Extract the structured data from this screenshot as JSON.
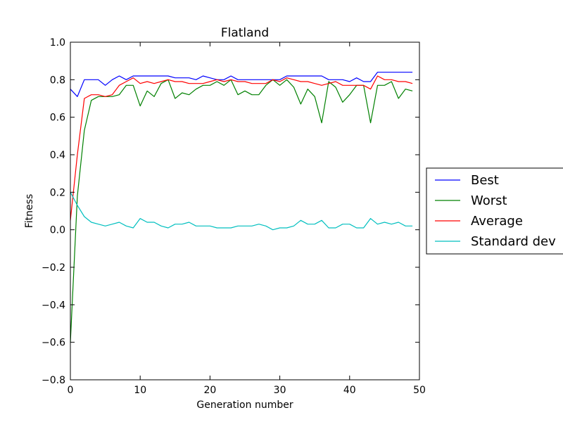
{
  "chart_data": {
    "type": "line",
    "title": "Flatland",
    "xlabel": "Generation number",
    "ylabel": "Fitness",
    "xlim": [
      0,
      50
    ],
    "ylim": [
      -0.8,
      1.0
    ],
    "xticks": [
      0,
      10,
      20,
      30,
      40,
      50
    ],
    "yticks": [
      -0.8,
      -0.6,
      -0.4,
      -0.2,
      0.0,
      0.2,
      0.4,
      0.6,
      0.8,
      1.0
    ],
    "grid": false,
    "legend_position": "right, outside plot area",
    "x": [
      0,
      1,
      2,
      3,
      4,
      5,
      6,
      7,
      8,
      9,
      10,
      11,
      12,
      13,
      14,
      15,
      16,
      17,
      18,
      19,
      20,
      21,
      22,
      23,
      24,
      25,
      26,
      27,
      28,
      29,
      30,
      31,
      32,
      33,
      34,
      35,
      36,
      37,
      38,
      39,
      40,
      41,
      42,
      43,
      44,
      45,
      46,
      47,
      48,
      49
    ],
    "series": [
      {
        "name": "Best",
        "color": "#0000ff",
        "values": [
          0.75,
          0.71,
          0.8,
          0.8,
          0.8,
          0.77,
          0.8,
          0.82,
          0.8,
          0.82,
          0.82,
          0.82,
          0.82,
          0.82,
          0.82,
          0.81,
          0.81,
          0.81,
          0.8,
          0.82,
          0.81,
          0.8,
          0.8,
          0.82,
          0.8,
          0.8,
          0.8,
          0.8,
          0.8,
          0.8,
          0.8,
          0.82,
          0.82,
          0.82,
          0.82,
          0.82,
          0.82,
          0.8,
          0.8,
          0.8,
          0.79,
          0.81,
          0.79,
          0.79,
          0.84,
          0.84,
          0.84,
          0.84,
          0.84,
          0.84
        ]
      },
      {
        "name": "Worst",
        "color": "#008000",
        "values": [
          -0.6,
          0.18,
          0.53,
          0.69,
          0.71,
          0.71,
          0.71,
          0.72,
          0.77,
          0.77,
          0.66,
          0.74,
          0.71,
          0.78,
          0.8,
          0.7,
          0.73,
          0.72,
          0.75,
          0.77,
          0.77,
          0.79,
          0.77,
          0.8,
          0.72,
          0.74,
          0.72,
          0.72,
          0.77,
          0.8,
          0.77,
          0.8,
          0.76,
          0.67,
          0.75,
          0.71,
          0.57,
          0.79,
          0.76,
          0.68,
          0.72,
          0.77,
          0.77,
          0.57,
          0.77,
          0.77,
          0.79,
          0.7,
          0.75,
          0.74
        ]
      },
      {
        "name": "Average",
        "color": "#ff0000",
        "values": [
          0.05,
          0.4,
          0.7,
          0.72,
          0.72,
          0.71,
          0.72,
          0.77,
          0.79,
          0.81,
          0.78,
          0.79,
          0.78,
          0.79,
          0.8,
          0.79,
          0.79,
          0.78,
          0.78,
          0.78,
          0.79,
          0.8,
          0.79,
          0.8,
          0.79,
          0.79,
          0.78,
          0.78,
          0.78,
          0.8,
          0.79,
          0.81,
          0.8,
          0.79,
          0.79,
          0.78,
          0.77,
          0.78,
          0.79,
          0.77,
          0.77,
          0.77,
          0.77,
          0.75,
          0.82,
          0.8,
          0.8,
          0.79,
          0.79,
          0.78
        ]
      },
      {
        "name": "Standard dev",
        "color": "#00bfbf",
        "values": [
          0.2,
          0.13,
          0.07,
          0.04,
          0.03,
          0.02,
          0.03,
          0.04,
          0.02,
          0.01,
          0.06,
          0.04,
          0.04,
          0.02,
          0.01,
          0.03,
          0.03,
          0.04,
          0.02,
          0.02,
          0.02,
          0.01,
          0.01,
          0.01,
          0.02,
          0.02,
          0.02,
          0.03,
          0.02,
          0.0,
          0.01,
          0.01,
          0.02,
          0.05,
          0.03,
          0.03,
          0.05,
          0.01,
          0.01,
          0.03,
          0.03,
          0.01,
          0.01,
          0.06,
          0.03,
          0.04,
          0.03,
          0.04,
          0.02,
          0.02
        ]
      }
    ]
  }
}
